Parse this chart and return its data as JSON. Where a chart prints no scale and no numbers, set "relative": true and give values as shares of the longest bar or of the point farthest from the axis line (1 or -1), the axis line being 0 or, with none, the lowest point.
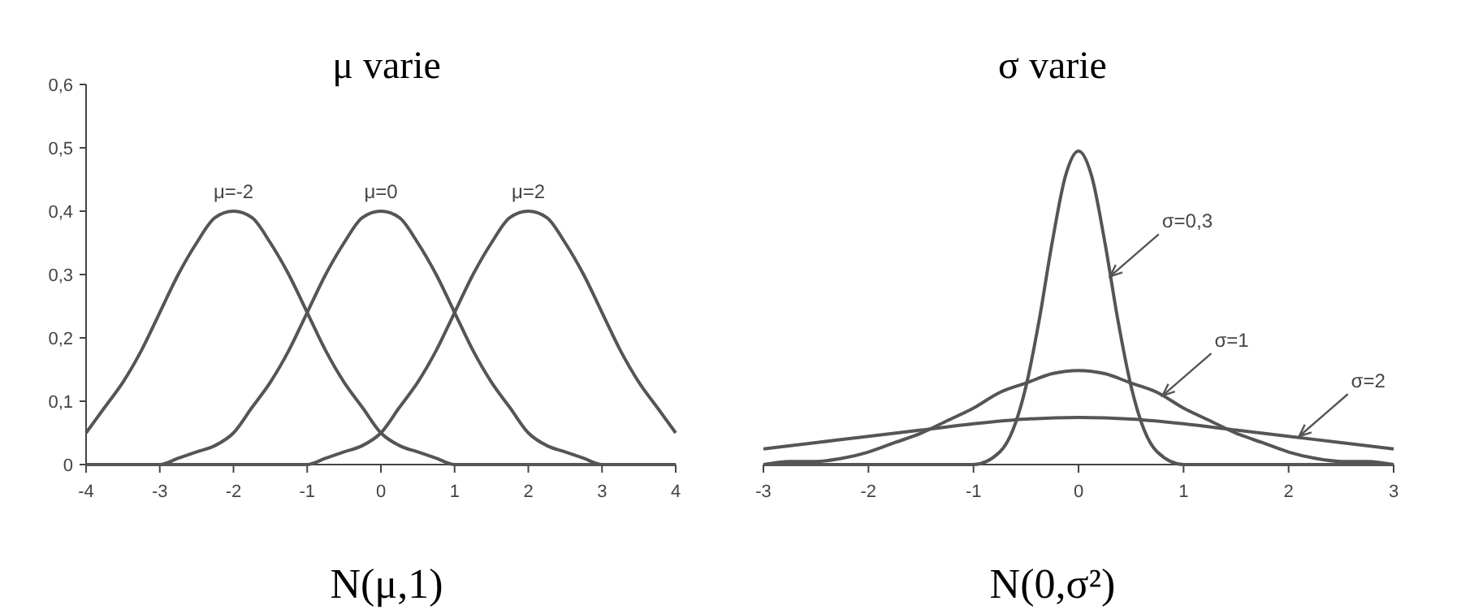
{
  "chart_data": [
    {
      "type": "line",
      "title": "μ varie",
      "xlabel": "N(μ,1)",
      "xlim": [
        -4,
        4
      ],
      "xticks": [
        -4,
        -3,
        -2,
        -1,
        0,
        1,
        2,
        3,
        4
      ],
      "ylim": [
        0,
        0.6
      ],
      "yticks": [
        0,
        {
          "value": 0.1,
          "label": "0,1"
        },
        {
          "value": 0.2,
          "label": "0,2"
        },
        {
          "value": 0.3,
          "label": "0,3"
        },
        {
          "value": 0.4,
          "label": "0,4"
        },
        {
          "value": 0.5,
          "label": "0,5"
        },
        {
          "value": 0.6,
          "label": "0,6"
        }
      ],
      "x": [
        -4,
        -3.75,
        -3.5,
        -3.25,
        -3,
        -2.75,
        -2.5,
        -2.25,
        -2,
        -1.75,
        -1.5,
        -1.25,
        -1,
        -0.75,
        -0.5,
        -0.25,
        0,
        0.25,
        0.5,
        0.75,
        1,
        1.25,
        1.5,
        1.75,
        2,
        2.25,
        2.5,
        2.75,
        3,
        3.25,
        3.5,
        3.75,
        4
      ],
      "series": [
        {
          "color": "#555555",
          "values": [
            0.05,
            0.09,
            0.13,
            0.18,
            0.24,
            0.3,
            0.35,
            0.39,
            0.4,
            0.39,
            0.35,
            0.3,
            0.24,
            0.18,
            0.13,
            0.09,
            0.05,
            0.03,
            0.02,
            0.01,
            0,
            0,
            0,
            0,
            0,
            0,
            0,
            0,
            0,
            0,
            0,
            0,
            0
          ]
        },
        {
          "color": "#555555",
          "values": [
            0,
            0,
            0,
            0,
            0,
            0.01,
            0.02,
            0.03,
            0.05,
            0.09,
            0.13,
            0.18,
            0.24,
            0.3,
            0.35,
            0.39,
            0.4,
            0.39,
            0.35,
            0.3,
            0.24,
            0.18,
            0.13,
            0.09,
            0.05,
            0.03,
            0.02,
            0.01,
            0,
            0,
            0,
            0,
            0
          ]
        },
        {
          "color": "#555555",
          "values": [
            0,
            0,
            0,
            0,
            0,
            0,
            0,
            0,
            0,
            0,
            0,
            0,
            0,
            0.01,
            0.02,
            0.03,
            0.05,
            0.09,
            0.13,
            0.18,
            0.24,
            0.3,
            0.35,
            0.39,
            0.4,
            0.39,
            0.35,
            0.3,
            0.24,
            0.18,
            0.13,
            0.09,
            0.05
          ]
        }
      ],
      "annotations": [
        {
          "text": "μ=-2",
          "x": -2,
          "y": 0.4
        },
        {
          "text": "μ=0",
          "x": 0,
          "y": 0.4
        },
        {
          "text": "μ=2",
          "x": 2,
          "y": 0.4
        }
      ]
    },
    {
      "type": "line",
      "title": "σ  varie",
      "xlabel": "N(0,σ²)",
      "xlim": [
        -3,
        3
      ],
      "xticks": [
        -3,
        -2,
        -1,
        0,
        1,
        2,
        3
      ],
      "relative": true,
      "series": [
        {
          "color": "#555555",
          "x": [
            -3,
            -1.5,
            -1,
            -0.75,
            -0.625,
            -0.5,
            -0.375,
            -0.25,
            -0.125,
            0,
            0.125,
            0.25,
            0.375,
            0.5,
            0.625,
            0.75,
            1,
            1.5,
            3
          ],
          "values": [
            0,
            0,
            0,
            0.04,
            0.11,
            0.25,
            0.46,
            0.71,
            0.92,
            1,
            0.92,
            0.71,
            0.46,
            0.25,
            0.11,
            0.04,
            0,
            0,
            0
          ]
        },
        {
          "color": "#555555",
          "x": [
            -3,
            -2.75,
            -2.5,
            -2.25,
            -2,
            -1.75,
            -1.5,
            -1.25,
            -1,
            -0.75,
            -0.5,
            -0.25,
            0,
            0.25,
            0.5,
            0.75,
            1,
            1.25,
            1.5,
            1.75,
            2,
            2.25,
            2.5,
            2.75,
            3
          ],
          "values": [
            0,
            0.01,
            0.01,
            0.02,
            0.04,
            0.07,
            0.1,
            0.14,
            0.18,
            0.23,
            0.26,
            0.29,
            0.3,
            0.29,
            0.26,
            0.23,
            0.18,
            0.14,
            0.1,
            0.07,
            0.04,
            0.02,
            0.01,
            0.01,
            0
          ]
        },
        {
          "color": "#555555",
          "x": [
            -3,
            -2.5,
            -2,
            -1.5,
            -1,
            -0.5,
            0,
            0.5,
            1,
            1.5,
            2,
            2.5,
            3
          ],
          "values": [
            0.05,
            0.07,
            0.09,
            0.11,
            0.13,
            0.145,
            0.15,
            0.145,
            0.13,
            0.11,
            0.09,
            0.07,
            0.05
          ]
        }
      ],
      "annotations": [
        {
          "text": "σ=0,3",
          "x": 0.3,
          "y": 0.6
        },
        {
          "text": "σ=1",
          "x": 0.8,
          "y": 0.22
        },
        {
          "text": "σ=2",
          "x": 2.1,
          "y": 0.09
        }
      ]
    }
  ]
}
